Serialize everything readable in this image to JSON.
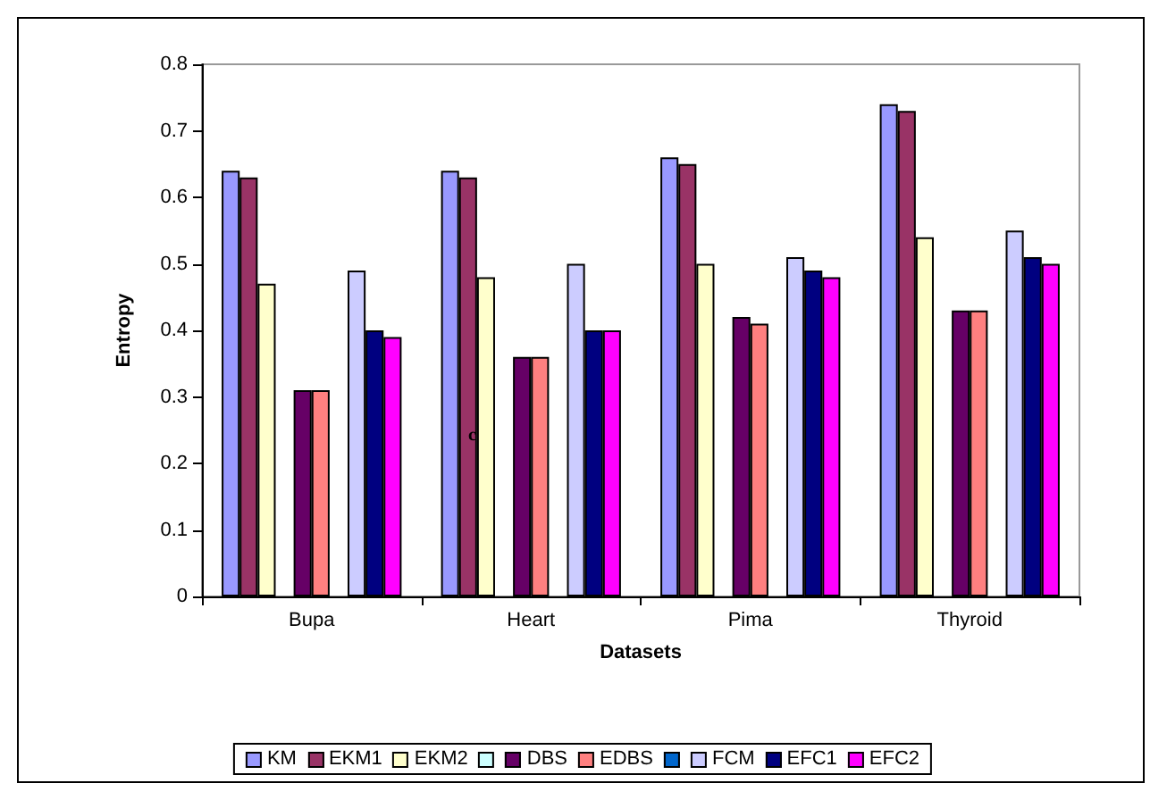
{
  "chart_data": {
    "type": "bar",
    "xlabel": "Datasets",
    "ylabel": "Entropy",
    "categories": [
      "Bupa",
      "Heart",
      "Pima",
      "Thyroid"
    ],
    "ylim": [
      0,
      0.8
    ],
    "yticks": [
      0,
      0.1,
      0.2,
      0.3,
      0.4,
      0.5,
      0.6,
      0.7,
      0.8
    ],
    "grid": false,
    "legend": "bottom",
    "annotations": [
      "c"
    ],
    "series": [
      {
        "name": "KM",
        "color": "#9999ff",
        "values": [
          0.64,
          0.64,
          0.66,
          0.74
        ]
      },
      {
        "name": "EKM1",
        "color": "#993366",
        "values": [
          0.63,
          0.63,
          0.65,
          0.73
        ]
      },
      {
        "name": "EKM2",
        "color": "#ffffcc",
        "values": [
          0.47,
          0.48,
          0.5,
          0.54
        ]
      },
      {
        "color": "#ccffff",
        "values": [
          null,
          null,
          null,
          null
        ]
      },
      {
        "name": "DBS",
        "color": "#660066",
        "values": [
          0.31,
          0.36,
          0.42,
          0.43
        ]
      },
      {
        "name": "EDBS",
        "color": "#ff8080",
        "values": [
          0.31,
          0.36,
          0.41,
          0.43
        ]
      },
      {
        "color": "#0066cc",
        "values": [
          null,
          null,
          null,
          null
        ]
      },
      {
        "name": "FCM",
        "color": "#ccccff",
        "values": [
          0.49,
          0.5,
          0.51,
          0.55
        ]
      },
      {
        "name": "EFC1",
        "color": "#000080",
        "values": [
          0.4,
          0.4,
          0.49,
          0.51
        ]
      },
      {
        "name": "EFC2",
        "color": "#ff00ff",
        "values": [
          0.39,
          0.4,
          0.48,
          0.5
        ]
      }
    ]
  }
}
